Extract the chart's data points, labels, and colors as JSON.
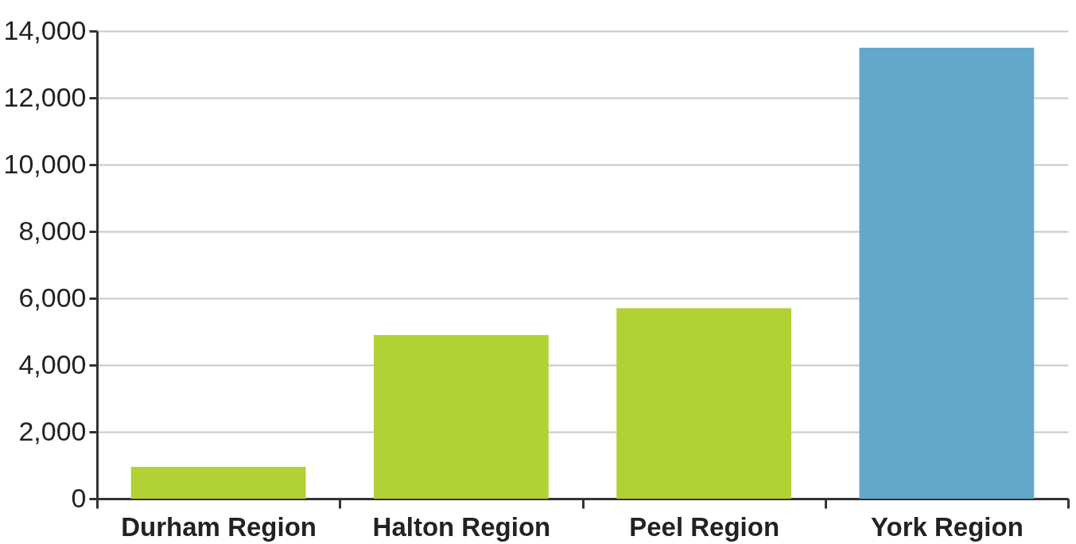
{
  "chart_data": {
    "type": "bar",
    "categories": [
      "Durham Region",
      "Halton Region",
      "Peel Region",
      "York Region"
    ],
    "values": [
      950,
      4900,
      5700,
      13500
    ],
    "colors": [
      "#b1d135",
      "#b1d135",
      "#b1d135",
      "#63a8cb"
    ],
    "ylim": [
      0,
      14000
    ],
    "yticks": [
      0,
      {
        "value": 2000,
        "label": "2,000"
      },
      {
        "value": 4000,
        "label": "4,000"
      },
      {
        "value": 6000,
        "label": "6,000"
      },
      {
        "value": 8000,
        "label": "8,000"
      },
      {
        "value": 10000,
        "label": "10,000"
      },
      {
        "value": 12000,
        "label": "12,000"
      },
      {
        "value": 14000,
        "label": "14,000"
      }
    ],
    "grid": "y"
  }
}
